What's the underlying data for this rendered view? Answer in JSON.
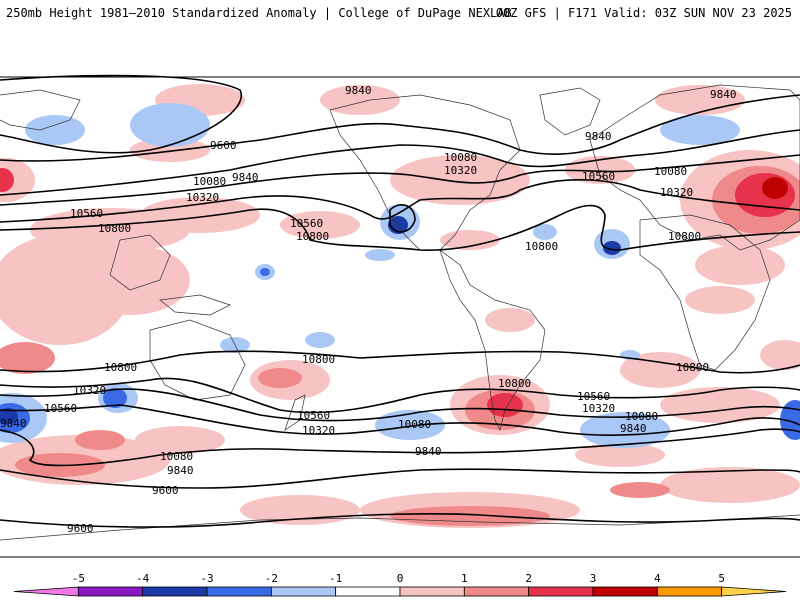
{
  "header": {
    "left": "250mb Height 1981–2010 Standardized Anomaly | College of DuPage NEXLAB",
    "right": "00Z GFS | F171 Valid: 03Z SUN NOV 23 2025"
  },
  "contour_labels": [
    "9840",
    "9600",
    "10080",
    "9840",
    "10320",
    "10560",
    "10800",
    "9840",
    "10080",
    "10320",
    "10560",
    "10800",
    "9840",
    "10320",
    "10560",
    "10080",
    "10800",
    "10800",
    "10800",
    "10800",
    "10320",
    "10560",
    "9840",
    "10560",
    "10320",
    "10080",
    "9840",
    "9840",
    "10080",
    "9600",
    "9600",
    "10800",
    "10560",
    "10320",
    "10080",
    "9840",
    "10800"
  ],
  "legend": {
    "ticks": [
      "-5",
      "-4",
      "-3",
      "-2",
      "-1",
      "0",
      "1",
      "2",
      "3",
      "4",
      "5"
    ],
    "colors": [
      "#f078e6",
      "#8a18c4",
      "#1a3aa8",
      "#3a6ae6",
      "#a9c8f5",
      "#ffffff",
      "#f7c3c3",
      "#f08a8a",
      "#e6324a",
      "#c00000",
      "#ff9a00",
      "#ffd24a"
    ]
  },
  "colors": {
    "land_outline": "#333333",
    "contour": "#000000",
    "frame": "#000000"
  }
}
